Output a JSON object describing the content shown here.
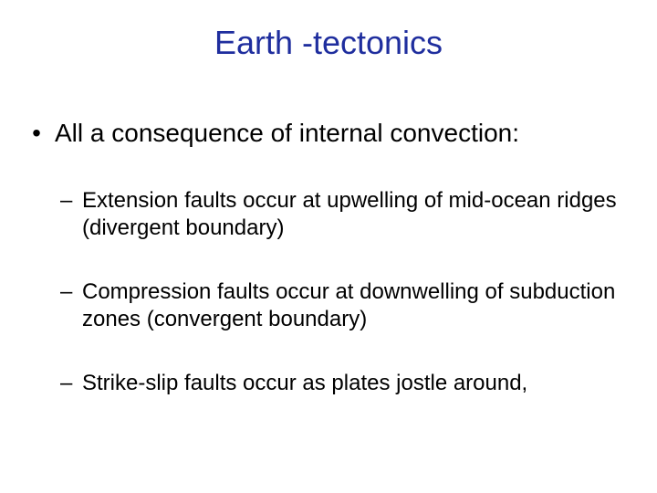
{
  "slide": {
    "title": "Earth -tectonics",
    "title_color": "#1f2e9e",
    "title_fontsize": 36,
    "body_color": "#000000",
    "body_fontsize_l1": 28,
    "body_fontsize_l2": 24,
    "background_color": "#ffffff",
    "bullets": {
      "level1": [
        {
          "marker": "•",
          "text": "All a consequence of internal convection:"
        }
      ],
      "level2": [
        {
          "marker": "–",
          "text": "Extension faults occur at upwelling of mid-ocean ridges (divergent boundary)"
        },
        {
          "marker": "–",
          "text": "Compression faults occur at downwelling of subduction zones (convergent boundary)"
        },
        {
          "marker": "–",
          "text": "Strike-slip faults occur as plates jostle around,"
        }
      ]
    }
  }
}
